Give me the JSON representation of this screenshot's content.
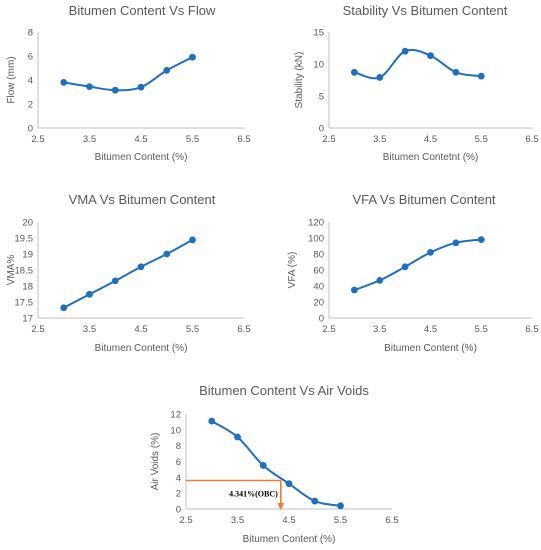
{
  "colors": {
    "series": "#1f6fbf",
    "axis": "#bfbfbf",
    "text": "#595959",
    "annotation": "#ed7d31"
  },
  "chart_data": [
    {
      "type": "line",
      "title": "Bitumen Content Vs Flow",
      "xlabel": "Bitumen Content (%)",
      "ylabel": "Flow (mm)",
      "xlim": [
        2.5,
        6.5
      ],
      "ylim": [
        0,
        8
      ],
      "xticks": [
        "2.5",
        "3.5",
        "4.5",
        "5.5",
        "6.5"
      ],
      "yticks": [
        "0",
        "2",
        "4",
        "6",
        "8"
      ],
      "x": [
        3,
        3.5,
        4,
        4.5,
        5,
        5.5
      ],
      "y": [
        3.8,
        3.45,
        3.15,
        3.4,
        4.8,
        5.9
      ],
      "grid": false,
      "smooth": true
    },
    {
      "type": "line",
      "title": "Stability Vs Bitumen Content",
      "xlabel": "Bitumen Contetnt (%)",
      "ylabel": "Stability (kN)",
      "xlim": [
        2.5,
        6.5
      ],
      "ylim": [
        0,
        15
      ],
      "xticks": [
        "2.5",
        "3.5",
        "4.5",
        "5.5",
        "6.5"
      ],
      "yticks": [
        "0",
        "5",
        "10",
        "15"
      ],
      "x": [
        3,
        3.5,
        4,
        4.5,
        5,
        5.5
      ],
      "y": [
        8.7,
        7.9,
        12.0,
        11.3,
        8.7,
        8.1
      ],
      "grid": false,
      "smooth": true
    },
    {
      "type": "line",
      "title": "VMA Vs Bitumen Content",
      "xlabel": "Bitumen Content (%)",
      "ylabel": "VMA%",
      "xlim": [
        2.5,
        6.5
      ],
      "ylim": [
        17,
        20
      ],
      "xticks": [
        "2.5",
        "3.5",
        "4.5",
        "5.5",
        "6.5"
      ],
      "yticks": [
        "17",
        "17.5",
        "18",
        "18.5",
        "19",
        "19.5",
        "20"
      ],
      "x": [
        3,
        3.5,
        4,
        4.5,
        5,
        5.5
      ],
      "y": [
        17.32,
        17.74,
        18.16,
        18.6,
        19.0,
        19.44
      ],
      "grid": false,
      "smooth": true
    },
    {
      "type": "line",
      "title": "VFA Vs Bitumen Content",
      "xlabel": "Bitumen Content (%)",
      "ylabel": "VFA (%)",
      "xlim": [
        2.5,
        6.5
      ],
      "ylim": [
        0,
        120
      ],
      "xticks": [
        "2.5",
        "3.5",
        "4.5",
        "5.5",
        "6.5"
      ],
      "yticks": [
        "0",
        "20",
        "40",
        "60",
        "80",
        "100",
        "120"
      ],
      "x": [
        3,
        3.5,
        4,
        4.5,
        5,
        5.5
      ],
      "y": [
        35,
        47,
        64,
        82,
        94,
        98
      ],
      "grid": false,
      "smooth": true
    },
    {
      "type": "line",
      "title": "Bitumen Content Vs Air Voids",
      "xlabel": "Bitumen Content (%)",
      "ylabel": "Air Voids (%)",
      "xlim": [
        2.5,
        6.5
      ],
      "ylim": [
        0,
        12
      ],
      "xticks": [
        "2.5",
        "3.5",
        "4.5",
        "5.5",
        "6.5"
      ],
      "yticks": [
        "0",
        "2",
        "4",
        "6",
        "8",
        "10",
        "12"
      ],
      "x": [
        3,
        3.5,
        4,
        4.5,
        5,
        5.5
      ],
      "y": [
        11.1,
        9.1,
        5.5,
        3.2,
        1.0,
        0.4
      ],
      "grid": false,
      "smooth": true,
      "annotation": {
        "text": "4.341%(OBC)",
        "x": 4.341,
        "y": 3.6
      }
    }
  ]
}
